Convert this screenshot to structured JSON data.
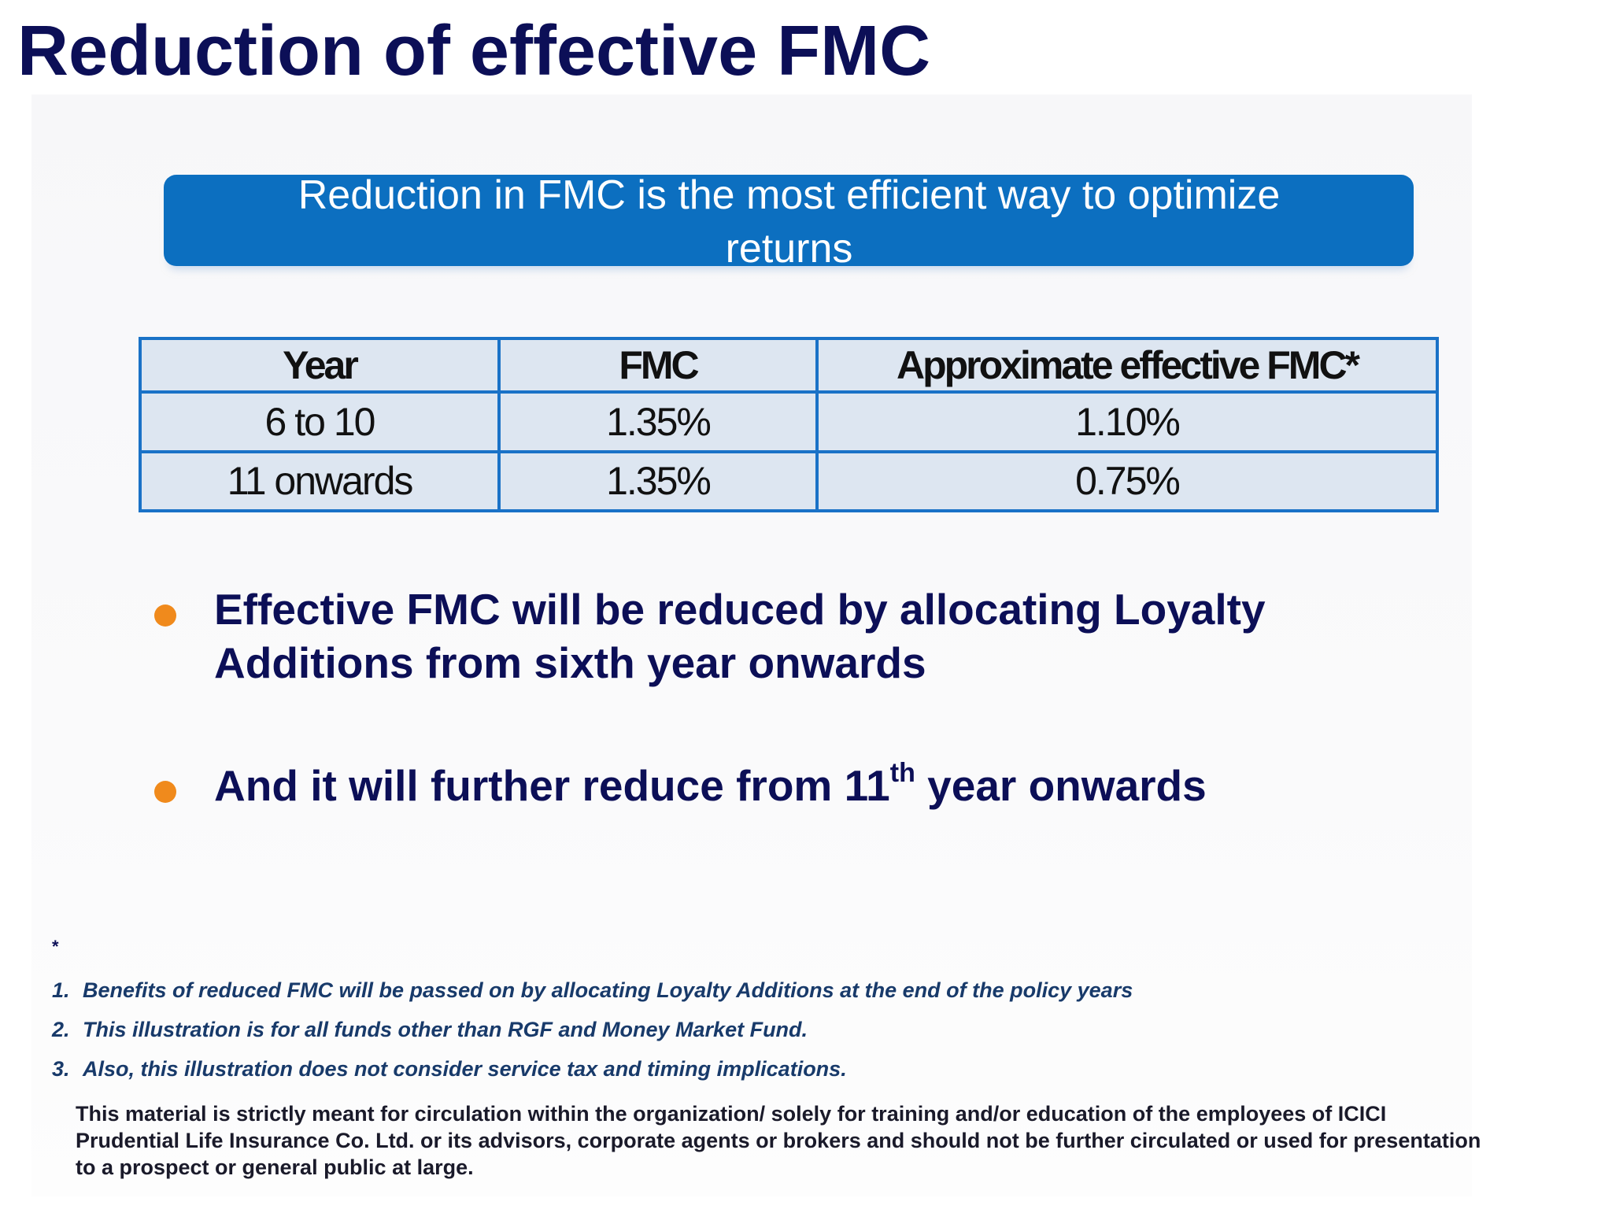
{
  "slide": {
    "title": "Reduction of effective FMC",
    "banner_text": "Reduction in FMC is the most efficient way to optimize returns"
  },
  "table": {
    "headers": [
      "Year",
      "FMC",
      "Approximate effective FMC*"
    ],
    "rows": [
      [
        "6 to 10",
        "1.35%",
        "1.10%"
      ],
      [
        "11 onwards",
        "1.35%",
        "0.75%"
      ]
    ]
  },
  "bullets": [
    {
      "text": "Effective FMC will be reduced by allocating Loyalty Additions from sixth year onwards"
    },
    {
      "text_before": "And it will further reduce from 11",
      "superscript": "th",
      "text_after": " year onwards"
    }
  ],
  "footnotes": {
    "marker": "*",
    "items": [
      {
        "num": "1.",
        "text": "Benefits of reduced FMC will be passed on by allocating Loyalty Additions at the end of the policy years"
      },
      {
        "num": "2.",
        "text": "This illustration is for all funds other than RGF and Money Market Fund."
      },
      {
        "num": "3.",
        "text": "Also, this illustration does not consider service tax and timing implications."
      }
    ]
  },
  "disclaimer": "This material is strictly meant for circulation within the organization/ solely for training and/or education of the employees of ICICI Prudential Life Insurance Co. Ltd. or its advisors, corporate agents or brokers and should not be further circulated or used for presentation to a prospect or general public at large.",
  "colors": {
    "title": "#0c0f57",
    "banner": "#0c6fc0",
    "table_border": "#1a72c7",
    "table_fill": "#dde6f1",
    "bullet_dot": "#f08a1c"
  }
}
